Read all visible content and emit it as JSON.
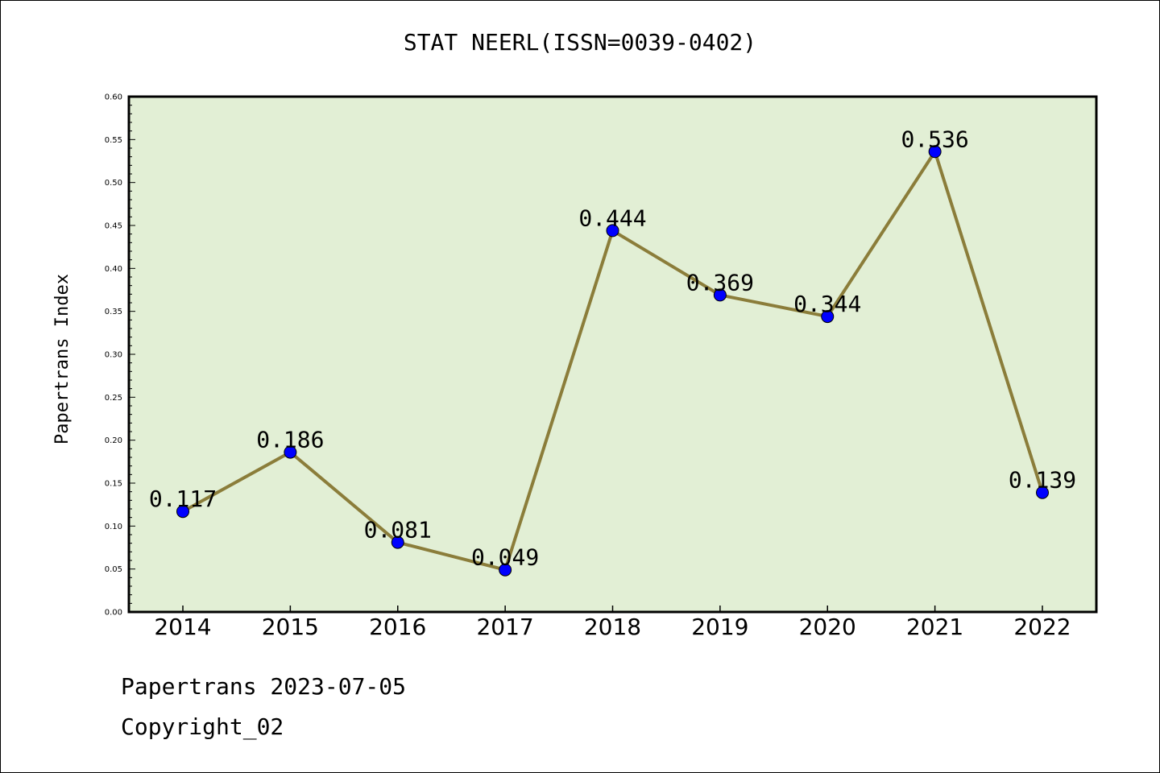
{
  "title": "STAT NEERL(ISSN=0039-0402)",
  "footer": {
    "line1": "Papertrans 2023-07-05",
    "line2": "Copyright_02"
  },
  "colors": {
    "plot_background": "#e2efd5",
    "line": "#8b7d3a",
    "marker": "#0000ff",
    "axis": "#000000"
  },
  "chart_data": {
    "type": "line",
    "title": "STAT NEERL(ISSN=0039-0402)",
    "xlabel": "",
    "ylabel": "Papertrans Index",
    "ylim": [
      0,
      0.6
    ],
    "ytick_step": 0.05,
    "yticks": [
      "0.00",
      "0.05",
      "0.10",
      "0.15",
      "0.20",
      "0.25",
      "0.30",
      "0.35",
      "0.40",
      "0.45",
      "0.50",
      "0.55",
      "0.60"
    ],
    "categories": [
      "2014",
      "2015",
      "2016",
      "2017",
      "2018",
      "2019",
      "2020",
      "2021",
      "2022"
    ],
    "series": [
      {
        "values": [
          0.117,
          0.186,
          0.081,
          0.049,
          0.444,
          0.369,
          0.344,
          0.536,
          0.139
        ],
        "labels": [
          "0.117",
          "0.186",
          "0.081",
          "0.049",
          "0.444",
          "0.369",
          "0.344",
          "0.536",
          "0.139"
        ]
      }
    ],
    "grid": false,
    "legend": "none"
  }
}
